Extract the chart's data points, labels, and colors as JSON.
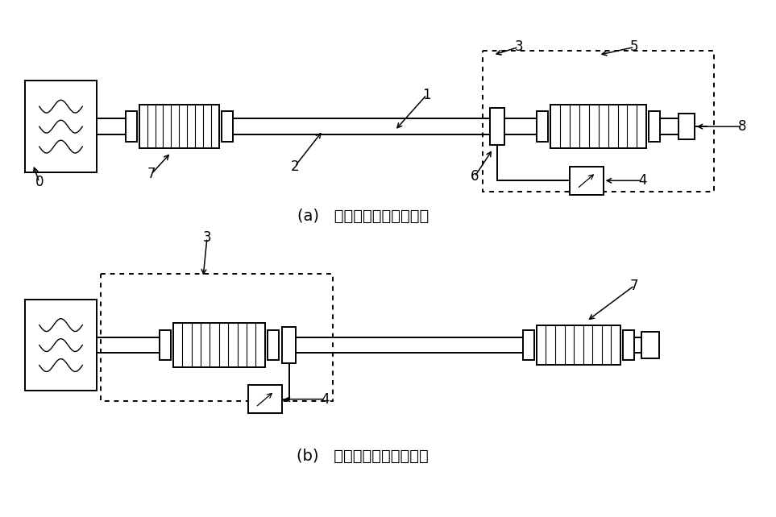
{
  "bg_color": "#ffffff",
  "fig_width": 9.63,
  "fig_height": 6.42,
  "caption_a": "(a)   试样的远端表面波测量",
  "caption_b": "(b)   试样的近端表面波测量",
  "font_candidates": [
    "SimSun",
    "STSong",
    "AR PL UMing CN",
    "WenQuanYi Micro Hei",
    "Noto Sans CJK SC",
    "DejaVu Sans"
  ]
}
